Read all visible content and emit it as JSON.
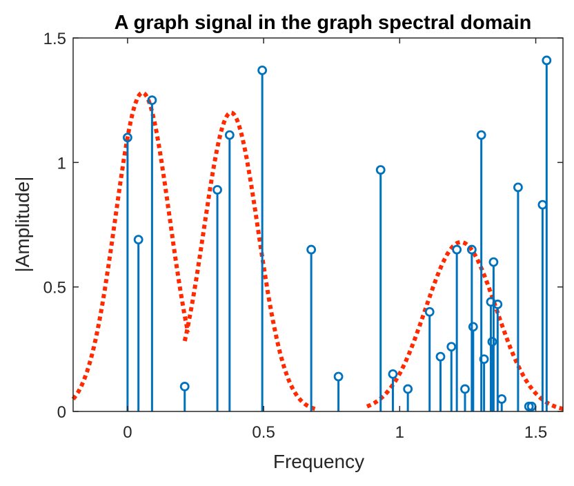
{
  "chart_data": {
    "type": "stem",
    "title": "A graph signal in the graph spectral domain",
    "xlabel": "Frequency",
    "ylabel": "|Amplitude|",
    "xlim": [
      -0.2,
      1.6
    ],
    "ylim": [
      0,
      1.5
    ],
    "xticks": [
      0,
      0.5,
      1,
      1.5
    ],
    "yticks": [
      0,
      0.5,
      1,
      1.5
    ],
    "xtick_labels": [
      "0",
      "0.5",
      "1",
      "1.5"
    ],
    "ytick_labels": [
      "0",
      "0.5",
      "1",
      "1.5"
    ],
    "grid": false,
    "series": [
      {
        "type": "stem",
        "color": "#0072BD",
        "x": [
          0.0,
          0.04,
          0.09,
          0.21,
          0.33,
          0.375,
          0.495,
          0.675,
          0.775,
          0.93,
          0.975,
          1.03,
          1.11,
          1.15,
          1.19,
          1.21,
          1.24,
          1.265,
          1.27,
          1.3,
          1.31,
          1.335,
          1.34,
          1.345,
          1.36,
          1.375,
          1.435,
          1.475,
          1.485,
          1.525,
          1.54
        ],
        "y": [
          1.1,
          0.69,
          1.25,
          0.1,
          0.89,
          1.11,
          1.37,
          0.65,
          0.14,
          0.97,
          0.15,
          0.09,
          0.4,
          0.22,
          0.26,
          0.65,
          0.09,
          0.65,
          0.34,
          1.11,
          0.21,
          0.44,
          0.28,
          0.6,
          0.43,
          0.05,
          0.9,
          0.02,
          0.02,
          0.83,
          1.41
        ]
      }
    ],
    "curves": [
      {
        "type": "gaussian",
        "style": "dotted",
        "color": "#FF2A00",
        "peak": 1.28,
        "center": 0.055,
        "sigma": 0.1,
        "range": [
          -0.2,
          0.222
        ]
      },
      {
        "type": "gaussian",
        "style": "dotted",
        "color": "#FF2A00",
        "peak": 1.2,
        "center": 0.38,
        "sigma": 0.1,
        "range": [
          0.21,
          0.69
        ]
      },
      {
        "type": "gaussian",
        "style": "dotted",
        "color": "#FF2A00",
        "peak": 0.68,
        "center": 1.225,
        "sigma": 0.13,
        "range": [
          0.88,
          1.6
        ]
      }
    ]
  }
}
